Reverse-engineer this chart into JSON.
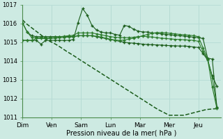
{
  "xlabel": "Pression niveau de la mer( hPa )",
  "background_color": "#cdeae2",
  "grid_color": "#b8ddd6",
  "line_color_dark": "#1a5c1a",
  "line_color_med": "#2a7a2a",
  "ylim": [
    1011,
    1017
  ],
  "yticks": [
    1011,
    1012,
    1013,
    1014,
    1015,
    1016,
    1017
  ],
  "day_labels": [
    "Dim",
    "Ven",
    "Sam",
    "Lun",
    "Mar",
    "Mer",
    "Jeu"
  ],
  "day_positions": [
    0,
    8,
    16,
    24,
    32,
    40,
    48
  ],
  "xlim_max": 54,
  "smooth_line": [
    1016.2,
    1016.0,
    1015.85,
    1015.7,
    1015.55,
    1015.4,
    1015.25,
    1015.1,
    1015.0,
    1014.9,
    1014.78,
    1014.65,
    1014.52,
    1014.4,
    1014.28,
    1014.15,
    1014.02,
    1013.9,
    1013.77,
    1013.65,
    1013.52,
    1013.4,
    1013.27,
    1013.15,
    1013.02,
    1012.9,
    1012.77,
    1012.65,
    1012.52,
    1012.4,
    1012.27,
    1012.15,
    1012.02,
    1011.9,
    1011.77,
    1011.65,
    1011.52,
    1011.4,
    1011.3,
    1011.2,
    1011.1,
    1011.1,
    1011.1,
    1011.1,
    1011.1,
    1011.15,
    1011.2,
    1011.25,
    1011.3,
    1011.35,
    1011.4,
    1011.42,
    1011.44,
    1011.45
  ],
  "series_a": [
    1016.05,
    1015.55,
    1015.35,
    1015.3,
    1015.3,
    1015.3,
    1015.3,
    1015.3,
    1015.3,
    1015.3,
    1015.3,
    1015.3,
    1015.35,
    1015.35,
    1015.35,
    1015.35,
    1015.3,
    1015.25,
    1015.2,
    1015.15,
    1015.1,
    1015.05,
    1015.0,
    1014.97,
    1014.95,
    1014.93,
    1014.9,
    1014.88,
    1014.87,
    1014.86,
    1014.85,
    1014.83,
    1014.82,
    1014.81,
    1014.8,
    1014.8,
    1014.78,
    1014.75,
    1014.72,
    1014.4,
    1014.05,
    1013.2,
    1012.65
  ],
  "series_b": [
    1016.05,
    1015.55,
    1015.25,
    1015.25,
    1015.25,
    1015.25,
    1015.25,
    1015.28,
    1015.3,
    1015.32,
    1015.35,
    1015.37,
    1015.5,
    1015.5,
    1015.5,
    1015.5,
    1015.45,
    1015.4,
    1015.35,
    1015.3,
    1015.27,
    1015.25,
    1015.25,
    1015.25,
    1015.27,
    1015.3,
    1015.32,
    1015.3,
    1015.28,
    1015.25,
    1015.22,
    1015.2,
    1015.18,
    1015.16,
    1015.15,
    1015.13,
    1015.12,
    1015.1,
    1015.05,
    1014.5,
    1014.1,
    1013.1,
    1011.55
  ],
  "series_c_peaks": [
    1015.1,
    1015.1,
    1015.1,
    1015.1,
    1014.9,
    1015.1,
    1015.1,
    1015.1,
    1015.1,
    1015.1,
    1015.1,
    1015.15,
    1016.05,
    1016.8,
    1016.45,
    1015.9,
    1015.65,
    1015.55,
    1015.5,
    1015.5,
    1015.42,
    1015.38,
    1015.9,
    1015.85,
    1015.7,
    1015.6,
    1015.55,
    1015.55,
    1015.5,
    1015.48,
    1015.45,
    1015.42,
    1015.4,
    1015.37,
    1015.35,
    1015.33,
    1015.3,
    1015.27,
    1015.25,
    1015.2,
    1014.15,
    1014.1,
    1011.5
  ],
  "series_d": [
    1015.1,
    1015.1,
    1015.1,
    1015.2,
    1015.2,
    1015.2,
    1015.2,
    1015.22,
    1015.24,
    1015.26,
    1015.28,
    1015.3,
    1015.35,
    1015.35,
    1015.35,
    1015.35,
    1015.32,
    1015.28,
    1015.22,
    1015.16,
    1015.12,
    1015.1,
    1015.12,
    1015.17,
    1015.22,
    1015.28,
    1015.35,
    1015.42,
    1015.48,
    1015.52,
    1015.52,
    1015.5,
    1015.48,
    1015.45,
    1015.42,
    1015.4,
    1015.38,
    1015.35,
    1015.3,
    1014.7,
    1014.1,
    1012.6,
    1011.45
  ]
}
